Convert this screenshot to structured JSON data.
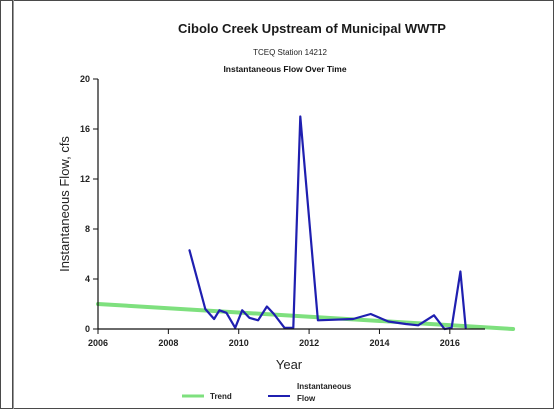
{
  "chart_data": {
    "type": "line",
    "title": "Cibolo Creek Upstream of Municipal WWTP",
    "subtitle": "TCEQ Station 14212",
    "subtitle2": "Instantaneous Flow Over Time",
    "xlabel": "Year",
    "ylabel": "Instantaneous Flow, cfs",
    "xlim": [
      2006,
      2017
    ],
    "ylim": [
      0,
      20
    ],
    "xticks": [
      2006,
      2008,
      2010,
      2012,
      2014,
      2016
    ],
    "yticks": [
      0,
      4,
      8,
      12,
      16,
      20
    ],
    "xtick_labels": [
      "2006",
      "2008",
      "2010",
      "2012",
      "2014",
      "2016"
    ],
    "ytick_labels": [
      "0",
      "4",
      "8",
      "12",
      "16",
      "20"
    ],
    "grid": false,
    "legend_position": "bottom",
    "series": [
      {
        "name": "Trend",
        "color": "#7ee07e",
        "x": [
          2006,
          2017.8
        ],
        "y": [
          2.0,
          0.0
        ]
      },
      {
        "name": "Instantaneous Flow",
        "color": "#1f1fb0",
        "x": [
          2008.6,
          2009.05,
          2009.3,
          2009.45,
          2009.65,
          2009.9,
          2010.1,
          2010.3,
          2010.55,
          2010.8,
          2011.0,
          2011.3,
          2011.55,
          2011.75,
          2012.25,
          2013.25,
          2013.75,
          2014.25,
          2014.75,
          2015.1,
          2015.55,
          2015.85,
          2016.05,
          2016.3,
          2016.45
        ],
        "y": [
          6.3,
          1.6,
          0.8,
          1.5,
          1.3,
          0.1,
          1.5,
          0.9,
          0.7,
          1.8,
          1.2,
          0.1,
          0.1,
          17.0,
          0.7,
          0.8,
          1.2,
          0.6,
          0.4,
          0.3,
          1.1,
          0.0,
          0.1,
          4.6,
          0.1
        ]
      }
    ]
  },
  "legend": {
    "trend_label": "Trend",
    "flow_label_line1": "Instantaneous",
    "flow_label_line2": "Flow"
  }
}
